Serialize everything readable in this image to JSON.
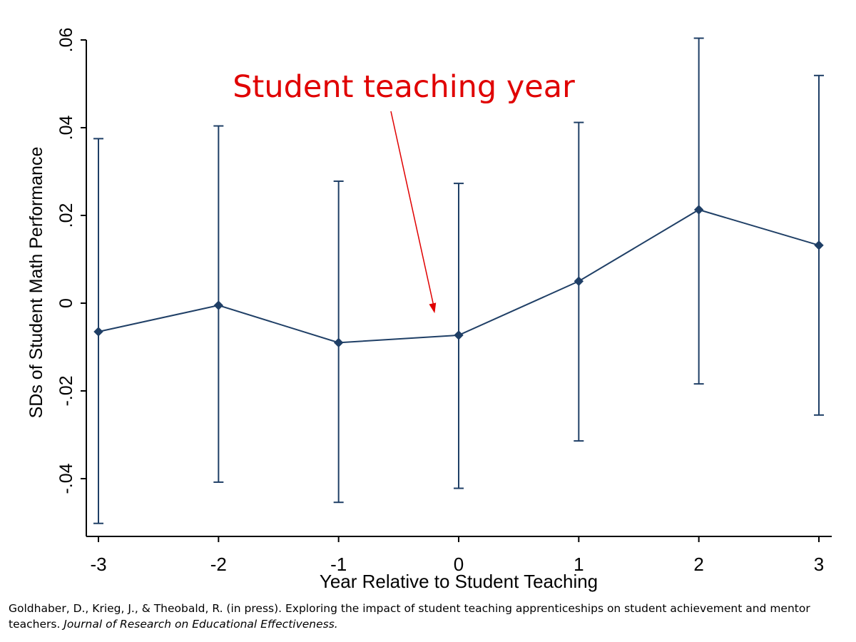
{
  "chart_data": {
    "type": "line",
    "xlabel": "Year Relative to Student Teaching",
    "ylabel": "SDs of Student Math Performance",
    "x": [
      -3,
      -2,
      -1,
      0,
      1,
      2,
      3
    ],
    "x_tick_labels": [
      "-3",
      "-2",
      "-1",
      "0",
      "1",
      "2",
      "3"
    ],
    "y_tick_values": [
      -0.04,
      -0.02,
      0,
      0.02,
      0.04,
      0.06
    ],
    "y_tick_labels": [
      "-.04",
      "-.02",
      "0",
      ".02",
      ".04",
      ".06"
    ],
    "xlim": [
      -3.1,
      3.1
    ],
    "ylim": [
      -0.0535,
      0.0617
    ],
    "series": [
      {
        "values": [
          -0.0065,
          -0.0005,
          -0.009,
          -0.0073,
          0.005,
          0.0213,
          0.0132
        ],
        "ci_lower": [
          -0.0502,
          -0.0408,
          -0.0454,
          -0.0422,
          -0.0314,
          -0.0184,
          -0.0255
        ],
        "ci_upper": [
          0.0375,
          0.0404,
          0.0278,
          0.0273,
          0.0412,
          0.0604,
          0.0519
        ],
        "color": "#1f3f66",
        "marker": "diamond",
        "error_bars": true
      }
    ],
    "annotation": {
      "text": "Student teaching year",
      "color": "#e00000",
      "arrow_to": {
        "x": -0.2,
        "y": -0.0023
      }
    },
    "grid": false
  },
  "citation": {
    "authors": "Goldhaber, D., Krieg, J., & Theobald, R. (in press). Exploring the impact of student teaching apprenticeships on student achievement and mentor teachers. ",
    "journal": "Journal of Research on Educational Effectiveness."
  }
}
